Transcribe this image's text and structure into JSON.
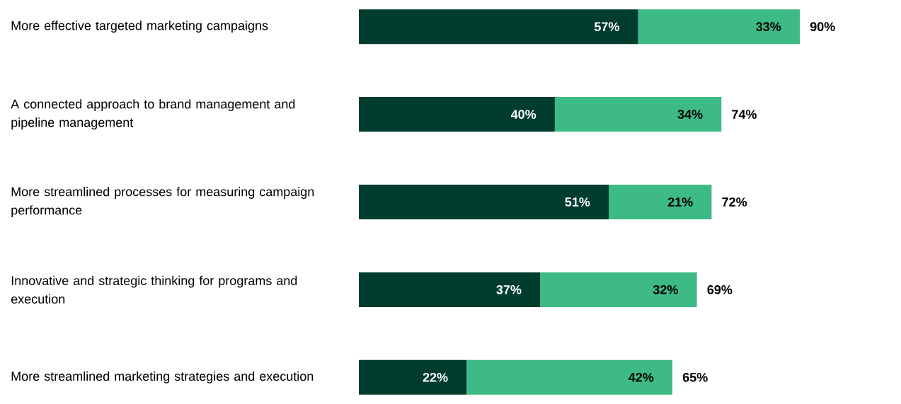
{
  "chart_data": {
    "type": "bar",
    "orientation": "horizontal",
    "stacked": true,
    "categories": [
      "More effective targeted marketing campaigns",
      "A connected approach to brand management and pipeline management",
      "More streamlined processes for measuring campaign performance",
      "Innovative and strategic thinking for programs and execution",
      "More streamlined marketing strategies and execution"
    ],
    "series": [
      {
        "color": "#003d2e",
        "values": [
          57,
          40,
          51,
          37,
          22
        ],
        "value_labels": [
          "57%",
          "40%",
          "51%",
          "37%",
          "22%"
        ]
      },
      {
        "color": "#3dba85",
        "values": [
          33,
          34,
          21,
          32,
          42
        ],
        "value_labels": [
          "33%",
          "34%",
          "21%",
          "32%",
          "42%"
        ]
      }
    ],
    "totals": [
      "90%",
      "74%",
      "72%",
      "69%",
      "65%"
    ]
  }
}
